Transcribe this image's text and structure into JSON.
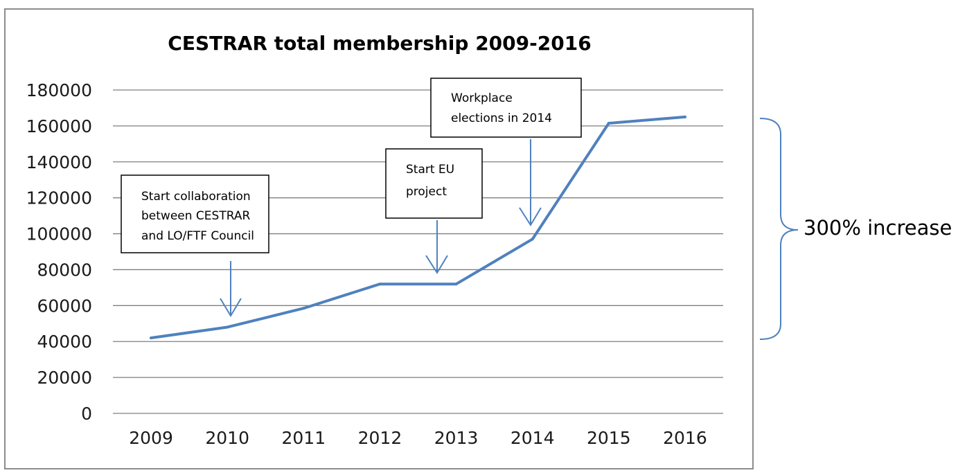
{
  "chart_data": {
    "type": "line",
    "title": "CESTRAR total membership 2009-2016",
    "xlabel": "",
    "ylabel": "",
    "categories": [
      "2009",
      "2010",
      "2011",
      "2012",
      "2013",
      "2014",
      "2015",
      "2016"
    ],
    "series": [
      {
        "values": [
          42000,
          48000,
          58500,
          72000,
          72000,
          97000,
          161500,
          165000
        ]
      }
    ],
    "ylim": [
      0,
      180000
    ],
    "yticks": [
      "0",
      "20000",
      "40000",
      "60000",
      "80000",
      "100000",
      "120000",
      "140000",
      "160000",
      "180000"
    ],
    "grid": true,
    "colors": {
      "line": "#4f81bd",
      "grid": "#7f7f7f",
      "frame": "#8c8c8c",
      "annotation_stroke": "#000000"
    },
    "annotations": [
      {
        "lines": [
          "Start collaboration",
          "between CESTRAR",
          "and LO/FTF Council"
        ],
        "points_to": "2010"
      },
      {
        "lines": [
          "Start EU",
          "project"
        ],
        "points_to": "2013"
      },
      {
        "lines": [
          "Workplace",
          "elections in 2014"
        ],
        "points_to": "2014"
      }
    ],
    "range_label": "300% increase",
    "range_span": [
      40000,
      160000
    ]
  }
}
